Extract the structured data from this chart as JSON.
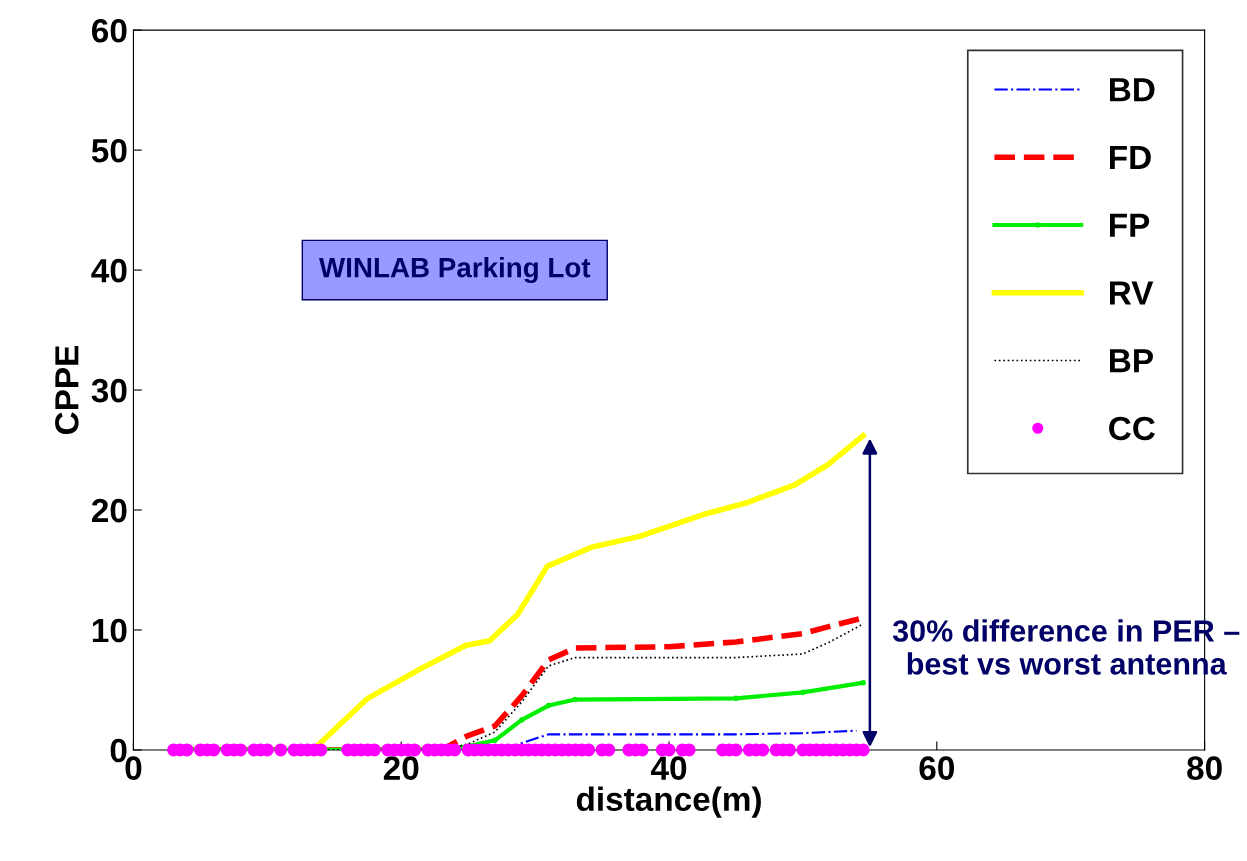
{
  "chart_data": {
    "type": "line",
    "xlabel": "distance(m)",
    "ylabel": "CPPE",
    "xlim": [
      0,
      80
    ],
    "xticks": [
      0,
      20,
      40,
      60,
      80
    ],
    "ylim": [
      0,
      60
    ],
    "yticks": [
      0,
      10,
      20,
      30,
      40,
      50,
      60
    ],
    "grid": false,
    "legend": "top right",
    "annotations": [
      "WINLAB Parking Lot",
      "30% difference in PER – best vs worst antenna"
    ],
    "series": [
      {
        "name": "BD",
        "color": "#0000ff",
        "line_style": "dashdot",
        "marker": "none",
        "x": [
          3,
          26,
          28,
          31,
          45,
          50,
          54
        ],
        "values": [
          0,
          0,
          0.2,
          1.3,
          1.3,
          1.4,
          1.6
        ]
      },
      {
        "name": "FD",
        "color": "#ff0000",
        "line_style": "dashed",
        "marker": "none",
        "x": [
          3,
          23,
          25,
          27,
          29,
          31,
          33,
          40,
          45,
          50,
          52,
          54.5
        ],
        "values": [
          0,
          0,
          1.2,
          2,
          4.5,
          7.5,
          8.5,
          8.6,
          9,
          9.7,
          10.3,
          11
        ]
      },
      {
        "name": "FP",
        "color": "#00ee00",
        "line_style": "solid",
        "marker": "circle",
        "x": [
          3,
          23,
          25,
          27,
          29,
          31,
          33,
          45,
          50,
          54.5
        ],
        "values": [
          0,
          0,
          0.3,
          0.8,
          2.5,
          3.7,
          4.2,
          4.3,
          4.8,
          5.6
        ]
      },
      {
        "name": "RV",
        "color": "#ffff00",
        "line_style": "solid",
        "marker": "none",
        "x": [
          13.4,
          17.5,
          21.5,
          24.8,
          26.6,
          28.7,
          30.9,
          34.2,
          37.8,
          42.5,
          45.8,
          49.4,
          51.9,
          54.5
        ],
        "values": [
          0,
          4.3,
          6.8,
          8.7,
          9.1,
          11.3,
          15.3,
          16.9,
          17.8,
          19.6,
          20.6,
          22.1,
          23.8,
          26.2
        ]
      },
      {
        "name": "BP",
        "color": "#000000",
        "line_style": "dotted",
        "marker": "none",
        "x": [
          3,
          23,
          25,
          27,
          29,
          31,
          33,
          45,
          50,
          52,
          54.5
        ],
        "values": [
          0,
          0,
          0.5,
          1.5,
          4,
          7,
          7.7,
          7.7,
          8,
          9,
          10.5
        ]
      },
      {
        "name": "CC",
        "color": "#ff00ff",
        "type": "scatter",
        "marker": "circle",
        "x": [
          3,
          3.5,
          4,
          5,
          5.5,
          6,
          7,
          7.5,
          8,
          9,
          9.5,
          10,
          11,
          12,
          12.5,
          13,
          13.5,
          14,
          16,
          16.5,
          17,
          17.5,
          18,
          19,
          19.5,
          20,
          20.5,
          21,
          22,
          22.5,
          23,
          23.5,
          24,
          25,
          25.5,
          26,
          26.5,
          27,
          27.5,
          28,
          28.5,
          29,
          29.5,
          30,
          30.5,
          31,
          31.5,
          32,
          32.5,
          33,
          33.5,
          34,
          35,
          35.5,
          37,
          37.5,
          38,
          39.5,
          40,
          41,
          41.5,
          44,
          44.5,
          45,
          46,
          46.5,
          47,
          48,
          48.5,
          49,
          50,
          50.5,
          51,
          51.5,
          52,
          52.5,
          53,
          53.5,
          54,
          54.5
        ],
        "values": [
          0,
          0,
          0,
          0,
          0,
          0,
          0,
          0,
          0,
          0,
          0,
          0,
          0,
          0,
          0,
          0,
          0,
          0,
          0,
          0,
          0,
          0,
          0,
          0,
          0,
          0,
          0,
          0,
          0,
          0,
          0,
          0,
          0,
          0,
          0,
          0,
          0,
          0,
          0,
          0,
          0,
          0,
          0,
          0,
          0,
          0,
          0,
          0,
          0,
          0,
          0,
          0,
          0,
          0,
          0,
          0,
          0,
          0,
          0,
          0,
          0,
          0,
          0,
          0,
          0,
          0,
          0,
          0,
          0,
          0,
          0,
          0,
          0,
          0,
          0,
          0,
          0,
          0,
          0,
          0
        ]
      }
    ]
  }
}
